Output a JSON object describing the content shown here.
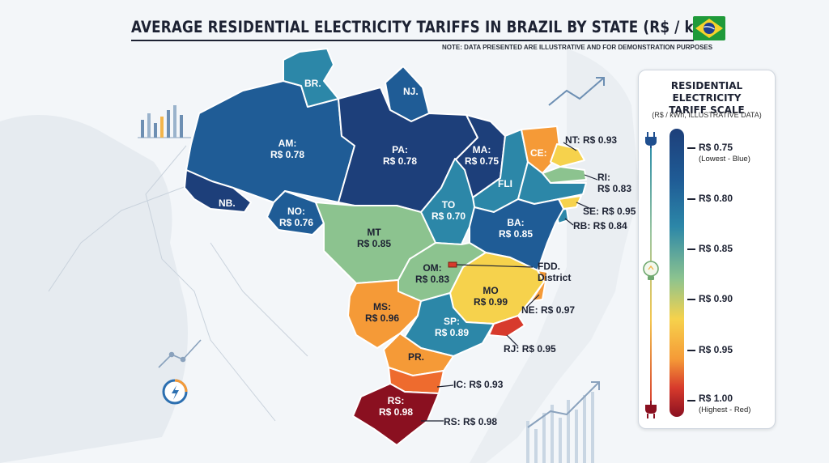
{
  "title": "AVERAGE RESIDENTIAL ELECTRICITY TARIFFS IN BRAZIL BY STATE (R$ / kWh)",
  "note": "NOTE: DATA PRESENTED ARE ILLUSTRATIVE AND FOR DEMONSTRATION PURPOSES",
  "legend": {
    "title_line1": "RESIDENTIAL ELECTRICITY",
    "title_line2": "TARIFF SCALE",
    "subtitle": "(R$ / kWh, ILLUSTRATIVE DATA)",
    "ticks": [
      {
        "label": "R$ 0.75",
        "note": "(Lowest - Blue)"
      },
      {
        "label": "R$ 0.80",
        "note": ""
      },
      {
        "label": "R$ 0.85",
        "note": ""
      },
      {
        "label": "R$ 0.90",
        "note": ""
      },
      {
        "label": "R$ 0.95",
        "note": ""
      },
      {
        "label": "R$ 1.00",
        "note": "(Highest - Red)"
      }
    ]
  },
  "states": {
    "br": {
      "name": "BR.",
      "value": ""
    },
    "nj": {
      "name": "NJ.",
      "value": ""
    },
    "am": {
      "name": "AM:",
      "value": "R$ 0.78"
    },
    "pa": {
      "name": "PA:",
      "value": "R$ 0.78"
    },
    "ma": {
      "name": "MA:",
      "value": "R$ 0.75"
    },
    "ce": {
      "name": "CE:",
      "value": ""
    },
    "nt": {
      "name": "NT:",
      "value": "R$ 0.93"
    },
    "ri": {
      "name": "RI:",
      "value": "R$ 0.83"
    },
    "fli": {
      "name": "FLI",
      "value": ""
    },
    "to": {
      "name": "TO",
      "value": "R$ 0.70"
    },
    "se": {
      "name": "SE:",
      "value": "R$ 0.95"
    },
    "rb": {
      "name": "RB:",
      "value": "R$ 0.84"
    },
    "nb": {
      "name": "NB.",
      "value": ""
    },
    "no": {
      "name": "NO:",
      "value": "R$ 0.76"
    },
    "mt": {
      "name": "MT",
      "value": "R$ 0.85"
    },
    "ba": {
      "name": "BA:",
      "value": "R$ 0.85"
    },
    "om": {
      "name": "OM:",
      "value": "R$ 0.83"
    },
    "fdd": {
      "name": "FDD.",
      "value": "District"
    },
    "mo": {
      "name": "MO",
      "value": "R$ 0.99"
    },
    "ms": {
      "name": "MS:",
      "value": "R$ 0.96"
    },
    "ne": {
      "name": "NE:",
      "value": "R$ 0.97"
    },
    "sp": {
      "name": "SP:",
      "value": "R$ 0.89"
    },
    "rj": {
      "name": "RJ:",
      "value": "R$ 0.95"
    },
    "pr": {
      "name": "PR.",
      "value": ""
    },
    "ic": {
      "name": "IC:",
      "value": "R$ 0.93"
    },
    "rs": {
      "name": "RS:",
      "value": "R$ 0.98"
    },
    "rs_callout": {
      "name": "RS:",
      "value": "R$ 0.98"
    }
  },
  "colors": {
    "dark_blue": "#1d3f7a",
    "blue": "#1f5c96",
    "teal": "#2c87a8",
    "green": "#8cc38f",
    "yellow": "#f6d24c",
    "orange": "#f59a37",
    "red": "#d73a2c",
    "dark_red": "#8a1020"
  },
  "icons": [
    "brazil-flag-icon",
    "bar-chart-icon",
    "trend-arrow-icon",
    "line-chart-icon",
    "energy-gauge-icon",
    "plug-icon",
    "light-bulb-icon"
  ]
}
